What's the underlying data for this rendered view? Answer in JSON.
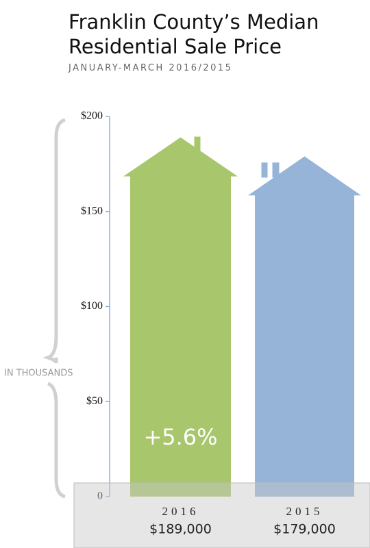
{
  "chart_data": {
    "type": "house-bar",
    "title": "Franklin County’s Median Residential Sale Price",
    "subtitle": "JANUARY-MARCH 2016/2015",
    "y_label": "IN THOUSANDS",
    "categories": [
      "2016",
      "2015"
    ],
    "values": [
      189,
      179
    ],
    "value_labels": [
      "$189,000",
      "$179,000"
    ],
    "colors": [
      "#a8c66c",
      "#95b4d8"
    ],
    "annotation": "+5.6%",
    "ylim": [
      0,
      200
    ],
    "yticks": [
      0,
      {
        "value": 50,
        "label": "$50"
      },
      {
        "value": 100,
        "label": "$100"
      },
      {
        "value": 150,
        "label": "$150"
      },
      {
        "value": 200,
        "label": "$200"
      }
    ]
  }
}
